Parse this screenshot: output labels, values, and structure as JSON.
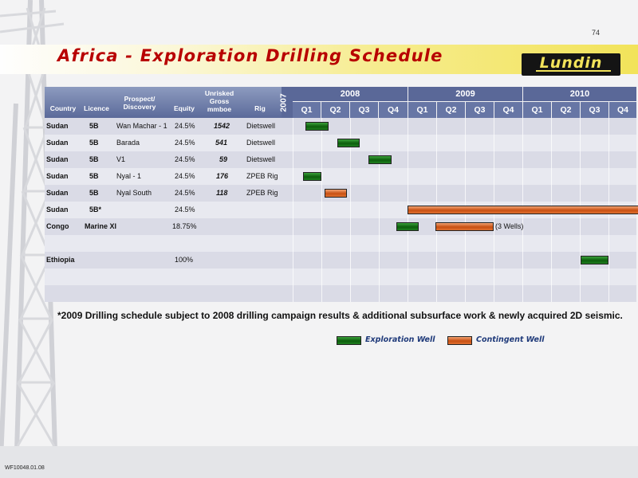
{
  "page_number": "74",
  "title": "Africa - Exploration Drilling Schedule",
  "logo_text": "Lundin",
  "doc_ref": "WF10048.01.08",
  "columns": {
    "country": "Country",
    "licence": "Licence",
    "prospect": "Prospect/ Discovery",
    "equity": "Equity",
    "unrisked": "Unrisked Gross mmboe",
    "rig": "Rig"
  },
  "years": [
    "2007",
    "2008",
    "2009",
    "2010"
  ],
  "quarters": [
    "Q1",
    "Q2",
    "Q3",
    "Q4",
    "Q1",
    "Q2",
    "Q3",
    "Q4",
    "Q1",
    "Q2",
    "Q3",
    "Q4"
  ],
  "rows": [
    {
      "country": "Sudan",
      "licence": "5B",
      "prospect": "Wan Machar - 1",
      "equity": "24.5%",
      "unrisked": "1542",
      "rig": "Dietswell"
    },
    {
      "country": "Sudan",
      "licence": "5B",
      "prospect": "Barada",
      "equity": "24.5%",
      "unrisked": "541",
      "rig": "Dietswell"
    },
    {
      "country": "Sudan",
      "licence": "5B",
      "prospect": "V1",
      "equity": "24.5%",
      "unrisked": "59",
      "rig": "Dietswell"
    },
    {
      "country": "Sudan",
      "licence": "5B",
      "prospect": "Nyal - 1",
      "equity": "24.5%",
      "unrisked": "176",
      "rig": "ZPEB Rig"
    },
    {
      "country": "Sudan",
      "licence": "5B",
      "prospect": "Nyal South",
      "equity": "24.5%",
      "unrisked": "118",
      "rig": "ZPEB Rig"
    },
    {
      "country": "Sudan",
      "licence": "5B*",
      "prospect": "",
      "equity": "24.5%",
      "unrisked": "",
      "rig": ""
    },
    {
      "country": "Congo",
      "licence": "Marine XI",
      "prospect": "",
      "equity": "18.75%",
      "unrisked": "",
      "rig": ""
    },
    {
      "country": "",
      "licence": "",
      "prospect": "",
      "equity": "",
      "unrisked": "",
      "rig": ""
    },
    {
      "country": "Ethiopia",
      "licence": "",
      "prospect": "",
      "equity": "100%",
      "unrisked": "",
      "rig": ""
    },
    {
      "country": "",
      "licence": "",
      "prospect": "",
      "equity": "",
      "unrisked": "",
      "rig": ""
    },
    {
      "country": "",
      "licence": "",
      "prospect": "",
      "equity": "",
      "unrisked": "",
      "rig": ""
    }
  ],
  "bar_note": "(3 Wells)",
  "footnote": "*2009 Drilling schedule subject to 2008 drilling campaign results & additional subsurface work & newly acquired 2D seismic.",
  "legend": {
    "exploration": "Exploration Well",
    "contingent": "Contingent Well"
  },
  "colors": {
    "exploration": "#0c5e0c",
    "contingent": "#c85012",
    "title": "#b80000",
    "header": "#5a6898"
  }
}
